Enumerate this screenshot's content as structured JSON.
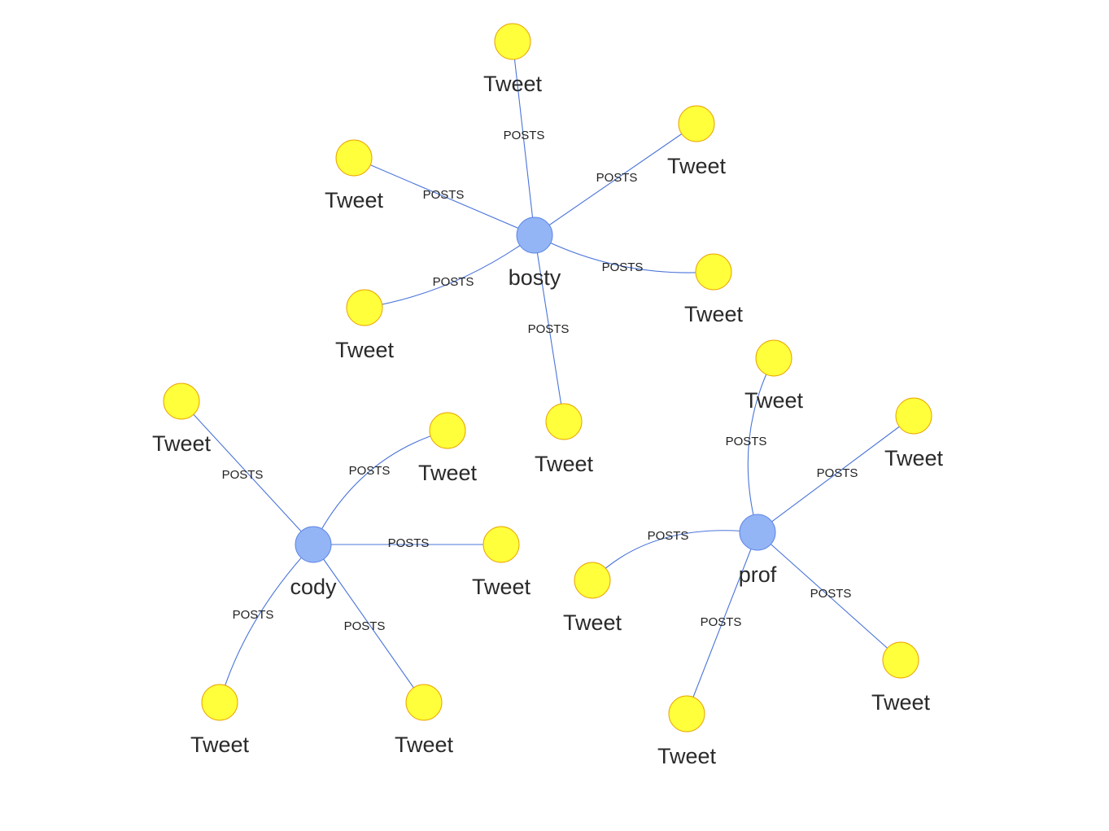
{
  "colors": {
    "user_fill": "#93b5f5",
    "tweet_fill": "#ffff3b",
    "edge": "#4a74d9"
  },
  "graph": {
    "users": [
      {
        "id": "bosty",
        "label": "bosty"
      },
      {
        "id": "cody",
        "label": "cody"
      },
      {
        "id": "prof",
        "label": "prof"
      }
    ],
    "tweets": [
      {
        "id": "b1",
        "label": "Tweet"
      },
      {
        "id": "b2",
        "label": "Tweet"
      },
      {
        "id": "b3",
        "label": "Tweet"
      },
      {
        "id": "b4",
        "label": "Tweet"
      },
      {
        "id": "b5",
        "label": "Tweet"
      },
      {
        "id": "b6",
        "label": "Tweet"
      },
      {
        "id": "c1",
        "label": "Tweet"
      },
      {
        "id": "c2",
        "label": "Tweet"
      },
      {
        "id": "c3",
        "label": "Tweet"
      },
      {
        "id": "c4",
        "label": "Tweet"
      },
      {
        "id": "c5",
        "label": "Tweet"
      },
      {
        "id": "p1",
        "label": "Tweet"
      },
      {
        "id": "p2",
        "label": "Tweet"
      },
      {
        "id": "p3",
        "label": "Tweet"
      },
      {
        "id": "p4",
        "label": "Tweet"
      },
      {
        "id": "p5",
        "label": "Tweet"
      }
    ],
    "edges": [
      {
        "from": "bosty",
        "to": "b1",
        "label": "POSTS"
      },
      {
        "from": "bosty",
        "to": "b2",
        "label": "POSTS"
      },
      {
        "from": "bosty",
        "to": "b3",
        "label": "POSTS"
      },
      {
        "from": "bosty",
        "to": "b4",
        "label": "POSTS"
      },
      {
        "from": "bosty",
        "to": "b5",
        "label": "POSTS"
      },
      {
        "from": "bosty",
        "to": "b6",
        "label": "POSTS"
      },
      {
        "from": "cody",
        "to": "c1",
        "label": "POSTS"
      },
      {
        "from": "cody",
        "to": "c2",
        "label": "POSTS"
      },
      {
        "from": "cody",
        "to": "c3",
        "label": "POSTS"
      },
      {
        "from": "cody",
        "to": "c4",
        "label": "POSTS"
      },
      {
        "from": "cody",
        "to": "c5",
        "label": "POSTS"
      },
      {
        "from": "prof",
        "to": "p1",
        "label": "POSTS"
      },
      {
        "from": "prof",
        "to": "p2",
        "label": "POSTS"
      },
      {
        "from": "prof",
        "to": "p3",
        "label": "POSTS"
      },
      {
        "from": "prof",
        "to": "p4",
        "label": "POSTS"
      },
      {
        "from": "prof",
        "to": "p5",
        "label": "POSTS"
      }
    ]
  }
}
